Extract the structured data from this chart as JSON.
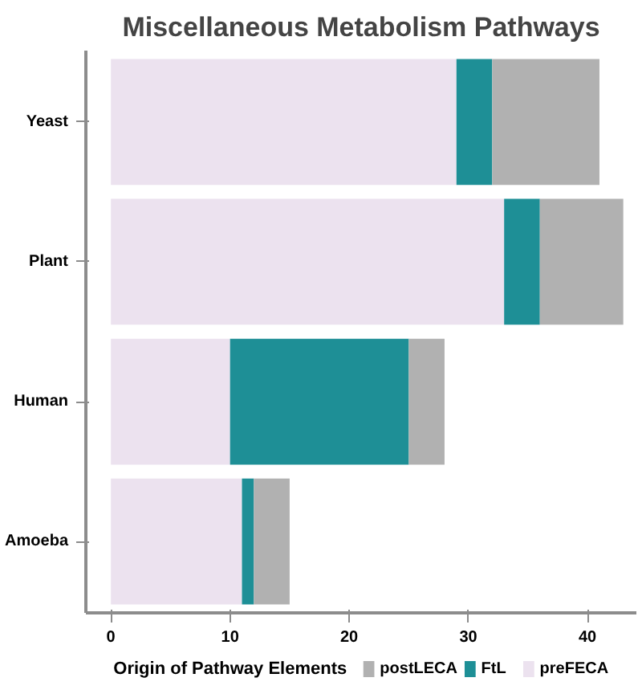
{
  "chart_data": {
    "type": "bar",
    "orientation": "horizontal",
    "stacked": true,
    "title": "Miscellaneous Metabolism Pathways",
    "legend_title": "Origin of Pathway Elements",
    "categories": [
      "Yeast",
      "Plant",
      "Human",
      "Amoeba"
    ],
    "series": [
      {
        "name": "preFECA",
        "color": "#ece2ef",
        "values": [
          29,
          33,
          10,
          11
        ]
      },
      {
        "name": "FtL",
        "color": "#1e8f96",
        "values": [
          3,
          3,
          15,
          1
        ]
      },
      {
        "name": "postLECA",
        "color": "#b1b1b1",
        "values": [
          9,
          7,
          3,
          3
        ]
      }
    ],
    "xlim": [
      -2.1,
      44.1
    ],
    "xticks": [
      0,
      10,
      20,
      30,
      40
    ],
    "grid": false,
    "legend": "bottom"
  }
}
